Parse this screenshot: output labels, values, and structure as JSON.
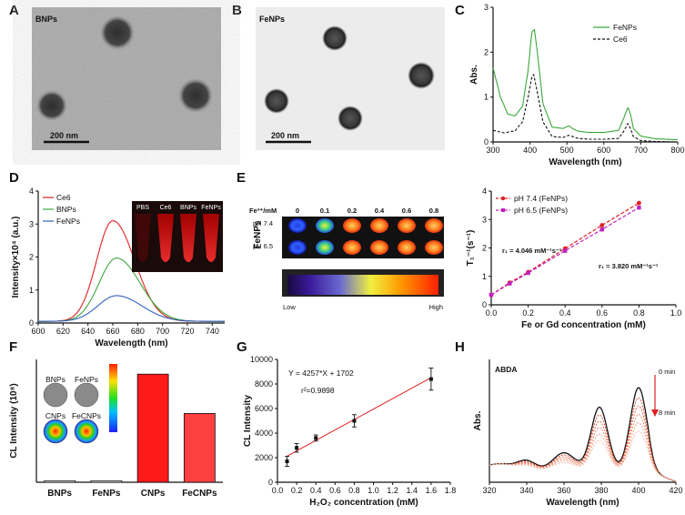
{
  "panels": {
    "A": "A",
    "B": "B",
    "C": "C",
    "D": "D",
    "E": "E",
    "F": "F",
    "G": "G",
    "H": "H"
  },
  "tem": {
    "a_label": "BNPs",
    "a_scale": "200 nm",
    "b_label": "FeNPs",
    "b_scale": "200 nm"
  },
  "panel_e": {
    "fe_label": "Fe³⁺/mM",
    "sample": "FeNPs",
    "row1": "pH 7.4",
    "row2": "pH 6.5",
    "conc": [
      "0",
      "0.1",
      "0.2",
      "0.4",
      "0.6",
      "0.8"
    ],
    "low": "Low",
    "high": "High"
  },
  "panel_f_inset": {
    "labels": [
      "BNPs",
      "FeNPs",
      "CNPs",
      "FeCNPs"
    ]
  },
  "panel_h_inset": {
    "t0": "0 min",
    "t8": "8 min"
  },
  "colors": {
    "green": "#3aa83a",
    "red": "#e02020",
    "blue": "#3060c0",
    "magenta": "#c020c0",
    "bar": "#ff1a1a",
    "bar2": "#ff4040"
  },
  "chart_data": [
    {
      "id": "C",
      "type": "line",
      "title": "",
      "xlabel": "Wavelength (nm)",
      "ylabel": "Abs.",
      "xlim": [
        300,
        800
      ],
      "ylim": [
        0,
        3
      ],
      "xticks": [
        300,
        400,
        500,
        600,
        700,
        800
      ],
      "yticks": [
        0,
        1,
        2,
        3
      ],
      "series": [
        {
          "name": "FeNPs",
          "style": "solid",
          "x": [
            300,
            320,
            340,
            360,
            380,
            395,
            405,
            412,
            420,
            435,
            460,
            490,
            505,
            515,
            530,
            560,
            600,
            640,
            655,
            665,
            672,
            680,
            700,
            740,
            800
          ],
          "y": [
            1.65,
            1.0,
            0.62,
            0.58,
            0.8,
            1.6,
            2.45,
            2.5,
            2.0,
            0.85,
            0.33,
            0.3,
            0.36,
            0.3,
            0.24,
            0.21,
            0.21,
            0.26,
            0.55,
            0.78,
            0.62,
            0.3,
            0.13,
            0.07,
            0.05
          ]
        },
        {
          "name": "Ce6",
          "style": "dashed",
          "x": [
            300,
            330,
            360,
            380,
            395,
            405,
            410,
            420,
            435,
            460,
            490,
            505,
            515,
            530,
            560,
            600,
            640,
            655,
            665,
            672,
            680,
            700,
            740,
            800
          ],
          "y": [
            0.26,
            0.2,
            0.25,
            0.45,
            1.0,
            1.45,
            1.5,
            1.1,
            0.45,
            0.12,
            0.1,
            0.15,
            0.12,
            0.08,
            0.06,
            0.06,
            0.08,
            0.25,
            0.42,
            0.3,
            0.12,
            0.03,
            0.01,
            0.0
          ]
        }
      ]
    },
    {
      "id": "D",
      "type": "line",
      "title": "",
      "xlabel": "Wavelength (nm)",
      "ylabel": "Intensity×10⁴ (a.u.)",
      "xlim": [
        600,
        750
      ],
      "ylim": [
        0,
        4
      ],
      "xticks": [
        600,
        620,
        640,
        660,
        680,
        700,
        720,
        740
      ],
      "yticks": [
        0,
        1,
        2,
        3,
        4
      ],
      "inset_labels": [
        "PBS",
        "Ce6",
        "BNPs",
        "FeNPs"
      ],
      "series": [
        {
          "name": "Ce6",
          "color": "#e02020",
          "peak": 660,
          "amp": 3.05,
          "w": 13
        },
        {
          "name": "BNPs",
          "color": "#3aa83a",
          "peak": 663,
          "amp": 1.92,
          "w": 14
        },
        {
          "name": "FeNPs",
          "color": "#3060c0",
          "peak": 663,
          "amp": 0.78,
          "w": 15
        }
      ]
    },
    {
      "id": "E",
      "type": "scatter",
      "title": "",
      "xlabel": "Fe or Gd concentration (mM)",
      "ylabel": "T₁⁻¹(s⁻¹)",
      "xlim": [
        0,
        1.0
      ],
      "ylim": [
        0,
        4
      ],
      "xticks": [
        0.0,
        0.2,
        0.4,
        0.6,
        0.8,
        1.0
      ],
      "yticks": [
        0,
        1,
        2,
        3,
        4
      ],
      "series": [
        {
          "name": "pH 7.4 (FeNPs)",
          "color": "#e02020",
          "x": [
            0,
            0.1,
            0.2,
            0.4,
            0.6,
            0.8
          ],
          "y": [
            0.35,
            0.78,
            1.15,
            1.98,
            2.8,
            3.58
          ],
          "annotation": "r₁ = 4.046 mM⁻¹s⁻¹"
        },
        {
          "name": "pH 6.5 (FeNPs)",
          "color": "#c020c0",
          "x": [
            0,
            0.1,
            0.2,
            0.4,
            0.6,
            0.8
          ],
          "y": [
            0.35,
            0.75,
            1.12,
            1.9,
            2.65,
            3.42
          ],
          "annotation": "r₁ = 3.820 mM⁻¹s⁻¹"
        }
      ]
    },
    {
      "id": "F",
      "type": "bar",
      "title": "",
      "xlabel": "",
      "ylabel": "CL Intensity (10⁸)",
      "ylim": [
        0,
        2.5
      ],
      "categories": [
        "BNPs",
        "FeNPs",
        "CNPs",
        "FeCNPs"
      ],
      "values": [
        0.03,
        0.03,
        2.2,
        1.4
      ]
    },
    {
      "id": "G",
      "type": "scatter",
      "title": "",
      "xlabel": "H₂O₂ concentration (mM)",
      "ylabel": "CL Intensity",
      "xlim": [
        0,
        1.8
      ],
      "ylim": [
        0,
        10000
      ],
      "xticks": [
        0.0,
        0.2,
        0.4,
        0.6,
        0.8,
        1.0,
        1.2,
        1.4,
        1.6,
        1.8
      ],
      "yticks": [
        0,
        2000,
        4000,
        6000,
        8000,
        10000
      ],
      "x": [
        0.1,
        0.2,
        0.4,
        0.8,
        1.6
      ],
      "y": [
        1700,
        2800,
        3600,
        5000,
        8400
      ],
      "err": [
        400,
        350,
        250,
        500,
        900
      ],
      "equation": "Y = 4257*X + 1702",
      "r2": "r²=0.9898"
    },
    {
      "id": "H",
      "type": "line",
      "title": "ABDA",
      "xlabel": "Wavelength (nm)",
      "ylabel": "Abs.",
      "xlim": [
        320,
        420
      ],
      "xticks": [
        320,
        340,
        360,
        380,
        400,
        420
      ],
      "scales": [
        1.0,
        0.88,
        0.78,
        0.68,
        0.58,
        0.48
      ]
    }
  ]
}
